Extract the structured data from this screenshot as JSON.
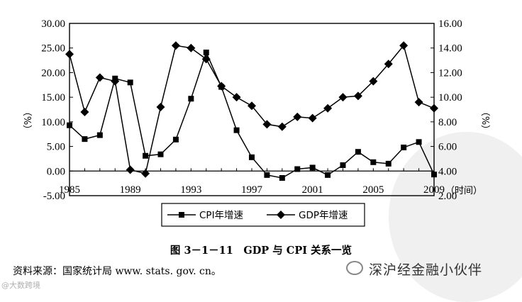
{
  "chart_data": {
    "type": "line",
    "title": "",
    "left_axis": {
      "label": "（%）",
      "min": -5,
      "max": 30,
      "ticks": [
        "30.00",
        "25.00",
        "20.00",
        "15.00",
        "10.00",
        "5.00",
        "0.00",
        "-5.00"
      ],
      "tick_values": [
        30,
        25,
        20,
        15,
        10,
        5,
        0,
        -5
      ]
    },
    "right_axis": {
      "label": "（%）",
      "min": 2,
      "max": 16,
      "ticks": [
        "16.00",
        "14.00",
        "12.00",
        "10.00",
        "8.00",
        "6.00",
        "4.00",
        "2.00"
      ],
      "tick_values": [
        16,
        14,
        12,
        10,
        8,
        6,
        4,
        2
      ]
    },
    "x_axis": {
      "label": "（时间）",
      "min": 1985,
      "max": 2009,
      "ticks": [
        "1985",
        "1989",
        "1993",
        "1997",
        "2001",
        "2005",
        "2009"
      ],
      "tick_values": [
        1985,
        1989,
        1993,
        1997,
        2001,
        2005,
        2009
      ]
    },
    "series": [
      {
        "name": "CPI年增速",
        "axis": "left",
        "marker": "square",
        "x": [
          1985,
          1986,
          1987,
          1988,
          1989,
          1990,
          1991,
          1992,
          1993,
          1994,
          1995,
          1996,
          1997,
          1998,
          1999,
          2000,
          2001,
          2002,
          2003,
          2004,
          2005,
          2006,
          2007,
          2008,
          2009
        ],
        "values": [
          9.3,
          6.5,
          7.3,
          18.8,
          18.0,
          3.1,
          3.4,
          6.4,
          14.7,
          24.1,
          17.1,
          8.3,
          2.8,
          -0.8,
          -1.4,
          0.4,
          0.7,
          -0.8,
          1.2,
          3.9,
          1.8,
          1.5,
          4.8,
          5.9,
          -0.7
        ]
      },
      {
        "name": "GDP年增速",
        "axis": "right",
        "marker": "diamond",
        "x": [
          1985,
          1986,
          1987,
          1988,
          1989,
          1990,
          1991,
          1992,
          1993,
          1994,
          1995,
          1996,
          1997,
          1998,
          1999,
          2000,
          2001,
          2002,
          2003,
          2004,
          2005,
          2006,
          2007,
          2008,
          2009
        ],
        "values": [
          13.5,
          8.8,
          11.6,
          11.3,
          4.1,
          3.8,
          9.2,
          14.2,
          14.0,
          13.1,
          10.9,
          10.0,
          9.3,
          7.8,
          7.6,
          8.4,
          8.3,
          9.1,
          10.0,
          10.1,
          11.3,
          12.7,
          14.2,
          9.6,
          9.1
        ]
      }
    ],
    "legend": {
      "placement": "bottom-center",
      "items": [
        "CPI年增速",
        "GDP年增速"
      ]
    }
  },
  "caption": "图 3－1－11　GDP 与 CPI 关系一览",
  "source": "资料来源：国家统计局 www. stats. gov. cn。",
  "watermark_right": "深沪经金融小伙伴",
  "watermark_left": "@大数跨境"
}
